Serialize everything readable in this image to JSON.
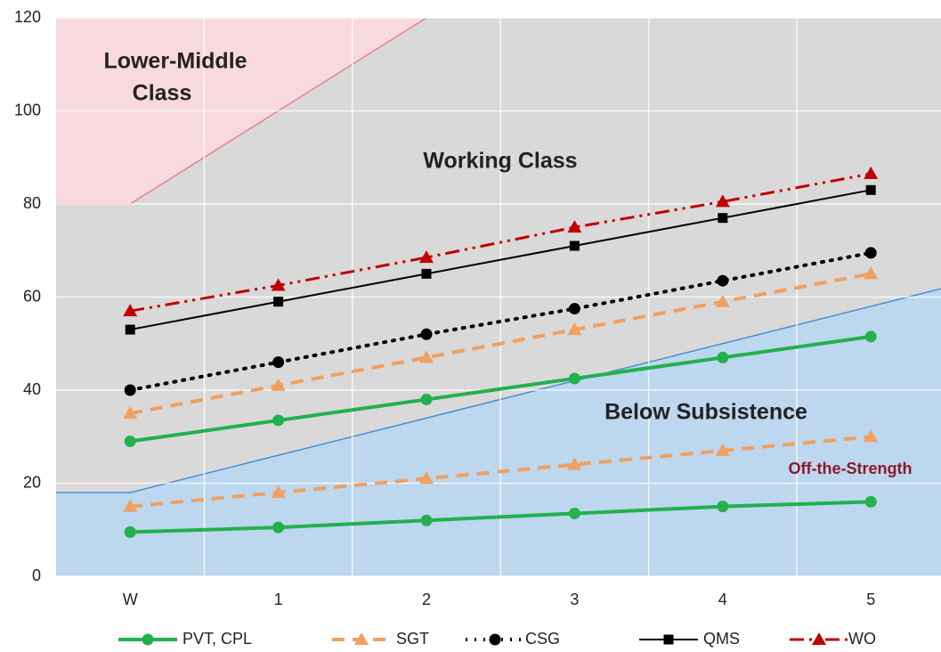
{
  "chart_data": {
    "type": "line",
    "categories": [
      "W",
      "1",
      "2",
      "3",
      "4",
      "5"
    ],
    "ylim": [
      0,
      120
    ],
    "yticks": [
      0,
      20,
      40,
      60,
      80,
      100,
      120
    ],
    "grid": true,
    "background": "#d9d9d9",
    "regions": [
      {
        "label": [
          "Lower-Middle",
          "Class"
        ],
        "color": "#f9d9e0",
        "edge_color": "#e8808f",
        "lower": [
          80,
          100,
          120,
          140,
          160,
          180
        ]
      },
      {
        "label": [
          "Below Subsistence"
        ],
        "color": "#bdd7ee",
        "edge_color": "#4a8fd0",
        "upper": [
          18,
          26,
          34,
          42,
          50,
          58
        ]
      }
    ],
    "annotations": [
      "Working Class",
      "Off-the-Strength"
    ],
    "annotation_color": "#8b1a2b",
    "series": [
      {
        "name": "PVT, CPL",
        "color": "#22b14c",
        "dash": "",
        "marker": "circle",
        "width": 4,
        "values": [
          29,
          33.5,
          38,
          42.5,
          47,
          51.5
        ],
        "off_strength_values": [
          9.5,
          10.5,
          12,
          13.5,
          15,
          16
        ]
      },
      {
        "name": "SGT",
        "color": "#f0a060",
        "dash": "14 9",
        "marker": "triangle",
        "width": 4,
        "values": [
          35,
          41,
          47,
          53,
          59,
          65
        ],
        "off_strength_values": [
          15,
          18,
          21,
          24,
          27,
          30
        ]
      },
      {
        "name": "CSG",
        "color": "#000000",
        "dash": "2 8",
        "marker": "circle",
        "width": 4,
        "values": [
          40,
          46,
          52,
          57.5,
          63.5,
          69.5
        ]
      },
      {
        "name": "QMS",
        "color": "#000000",
        "dash": "",
        "marker": "square",
        "width": 2,
        "values": [
          53,
          59,
          65,
          71,
          77,
          83
        ]
      },
      {
        "name": "WO",
        "color": "#c00000",
        "dash": "16 6 3 6 3 6",
        "marker": "triangle",
        "width": 3,
        "values": [
          57,
          62.5,
          68.5,
          75,
          80.5,
          86.5
        ]
      }
    ]
  }
}
